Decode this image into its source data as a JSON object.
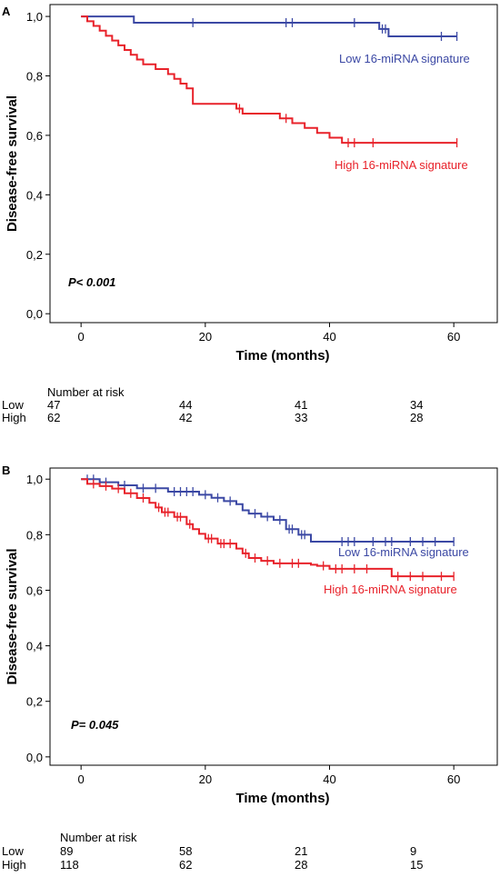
{
  "chart_data": [
    {
      "panel_label": "A",
      "type": "line",
      "step": true,
      "xlabel": "Time (months)",
      "ylabel": "Disease-free survival",
      "xticks": [
        "0",
        "20",
        "40",
        "60"
      ],
      "yticks": [
        "0,0",
        "0,2",
        "0,4",
        "0,6",
        "0,8",
        "1,0"
      ],
      "xlim": [
        -5,
        67
      ],
      "ylim": [
        -0.03,
        1.04
      ],
      "p_value": "P< 0.001",
      "colors": {
        "low": "#3b48a4",
        "high": "#e8222a"
      },
      "series": [
        {
          "name": "Low 16-miRNA signature",
          "color": "#3b48a4",
          "x": [
            0,
            8.5,
            48,
            49.5,
            60.5
          ],
          "y": [
            1.0,
            0.979,
            0.958,
            0.933,
            0.933
          ],
          "censored": [
            [
              18,
              0.979
            ],
            [
              33,
              0.979
            ],
            [
              34,
              0.979
            ],
            [
              44,
              0.979
            ],
            [
              48.5,
              0.958
            ],
            [
              49,
              0.958
            ],
            [
              58,
              0.933
            ],
            [
              60.5,
              0.933
            ]
          ]
        },
        {
          "name": "High 16-miRNA signature",
          "color": "#e8222a",
          "x": [
            0,
            1,
            2,
            3,
            4,
            5,
            6,
            7,
            8,
            9,
            10,
            12,
            14,
            15,
            16,
            17,
            18,
            25,
            26,
            32,
            34,
            36,
            38,
            40,
            42,
            60.5
          ],
          "y": [
            1.0,
            0.984,
            0.968,
            0.952,
            0.935,
            0.919,
            0.903,
            0.887,
            0.871,
            0.855,
            0.839,
            0.823,
            0.806,
            0.79,
            0.774,
            0.758,
            0.706,
            0.69,
            0.673,
            0.657,
            0.641,
            0.625,
            0.608,
            0.592,
            0.575,
            0.575
          ],
          "censored": [
            [
              25.5,
              0.69
            ],
            [
              33,
              0.657
            ],
            [
              43,
              0.575
            ],
            [
              44,
              0.575
            ],
            [
              47,
              0.575
            ],
            [
              60.5,
              0.575
            ]
          ]
        }
      ],
      "risk_table": {
        "title": "Number at risk",
        "rows": [
          {
            "label": "Low",
            "values": [
              "47",
              "44",
              "41",
              "34"
            ]
          },
          {
            "label": "High",
            "values": [
              "62",
              "42",
              "33",
              "28"
            ]
          }
        ]
      }
    },
    {
      "panel_label": "B",
      "type": "line",
      "step": true,
      "xlabel": "Time (months)",
      "ylabel": "Disease-free survival",
      "xticks": [
        "0",
        "20",
        "40",
        "60"
      ],
      "yticks": [
        "0,0",
        "0,2",
        "0,4",
        "0,6",
        "0,8",
        "1,0"
      ],
      "xlim": [
        -5,
        67
      ],
      "ylim": [
        -0.03,
        1.04
      ],
      "p_value": "P= 0.045",
      "colors": {
        "low": "#3b48a4",
        "high": "#e8222a"
      },
      "series": [
        {
          "name": "Low 16-miRNA signature",
          "color": "#3b48a4",
          "x": [
            0,
            3,
            6,
            9,
            14,
            19,
            21,
            23,
            25,
            26,
            27,
            29,
            31,
            33,
            35,
            37,
            60
          ],
          "y": [
            1.0,
            0.989,
            0.978,
            0.967,
            0.955,
            0.944,
            0.933,
            0.921,
            0.91,
            0.888,
            0.876,
            0.865,
            0.853,
            0.82,
            0.8,
            0.775,
            0.775
          ],
          "censored": [
            [
              1,
              1.0
            ],
            [
              2,
              1.0
            ],
            [
              4,
              0.989
            ],
            [
              7,
              0.978
            ],
            [
              10,
              0.967
            ],
            [
              12,
              0.967
            ],
            [
              15,
              0.955
            ],
            [
              16,
              0.955
            ],
            [
              17,
              0.955
            ],
            [
              18,
              0.955
            ],
            [
              20,
              0.944
            ],
            [
              22,
              0.933
            ],
            [
              24,
              0.921
            ],
            [
              28,
              0.876
            ],
            [
              30,
              0.865
            ],
            [
              32,
              0.853
            ],
            [
              33.5,
              0.82
            ],
            [
              34,
              0.82
            ],
            [
              35.5,
              0.8
            ],
            [
              36,
              0.8
            ],
            [
              42,
              0.775
            ],
            [
              43,
              0.775
            ],
            [
              44,
              0.775
            ],
            [
              47,
              0.775
            ],
            [
              49,
              0.775
            ],
            [
              50,
              0.775
            ],
            [
              53,
              0.775
            ],
            [
              55,
              0.775
            ],
            [
              57,
              0.775
            ],
            [
              60,
              0.775
            ]
          ]
        },
        {
          "name": "High 16-miRNA signature",
          "color": "#e8222a",
          "x": [
            0,
            1,
            3,
            5,
            7,
            9,
            11,
            12,
            13,
            15,
            17,
            18,
            19,
            20,
            22,
            25,
            26,
            27,
            29,
            31,
            37,
            38,
            40,
            48,
            50,
            60
          ],
          "y": [
            1.0,
            0.983,
            0.975,
            0.966,
            0.949,
            0.932,
            0.915,
            0.898,
            0.881,
            0.864,
            0.838,
            0.82,
            0.803,
            0.786,
            0.768,
            0.75,
            0.733,
            0.716,
            0.706,
            0.697,
            0.692,
            0.688,
            0.677,
            0.677,
            0.65,
            0.65
          ],
          "censored": [
            [
              2,
              0.983
            ],
            [
              4,
              0.975
            ],
            [
              6,
              0.966
            ],
            [
              8,
              0.949
            ],
            [
              10,
              0.932
            ],
            [
              12.5,
              0.898
            ],
            [
              13.5,
              0.881
            ],
            [
              14,
              0.881
            ],
            [
              15.5,
              0.864
            ],
            [
              16,
              0.864
            ],
            [
              17.5,
              0.838
            ],
            [
              20.5,
              0.786
            ],
            [
              21,
              0.786
            ],
            [
              22.5,
              0.768
            ],
            [
              23,
              0.768
            ],
            [
              24,
              0.768
            ],
            [
              26.5,
              0.733
            ],
            [
              28,
              0.716
            ],
            [
              30,
              0.706
            ],
            [
              32,
              0.697
            ],
            [
              34,
              0.697
            ],
            [
              35,
              0.697
            ],
            [
              39,
              0.688
            ],
            [
              41,
              0.677
            ],
            [
              42,
              0.677
            ],
            [
              44,
              0.677
            ],
            [
              46,
              0.677
            ],
            [
              51,
              0.65
            ],
            [
              53,
              0.65
            ],
            [
              55,
              0.65
            ],
            [
              58,
              0.65
            ],
            [
              60,
              0.65
            ]
          ]
        }
      ],
      "risk_table": {
        "title": "Number at risk",
        "rows": [
          {
            "label": "Low",
            "values": [
              "89",
              "58",
              "21",
              "9"
            ]
          },
          {
            "label": "High",
            "values": [
              "118",
              "62",
              "28",
              "15"
            ]
          }
        ]
      }
    }
  ]
}
